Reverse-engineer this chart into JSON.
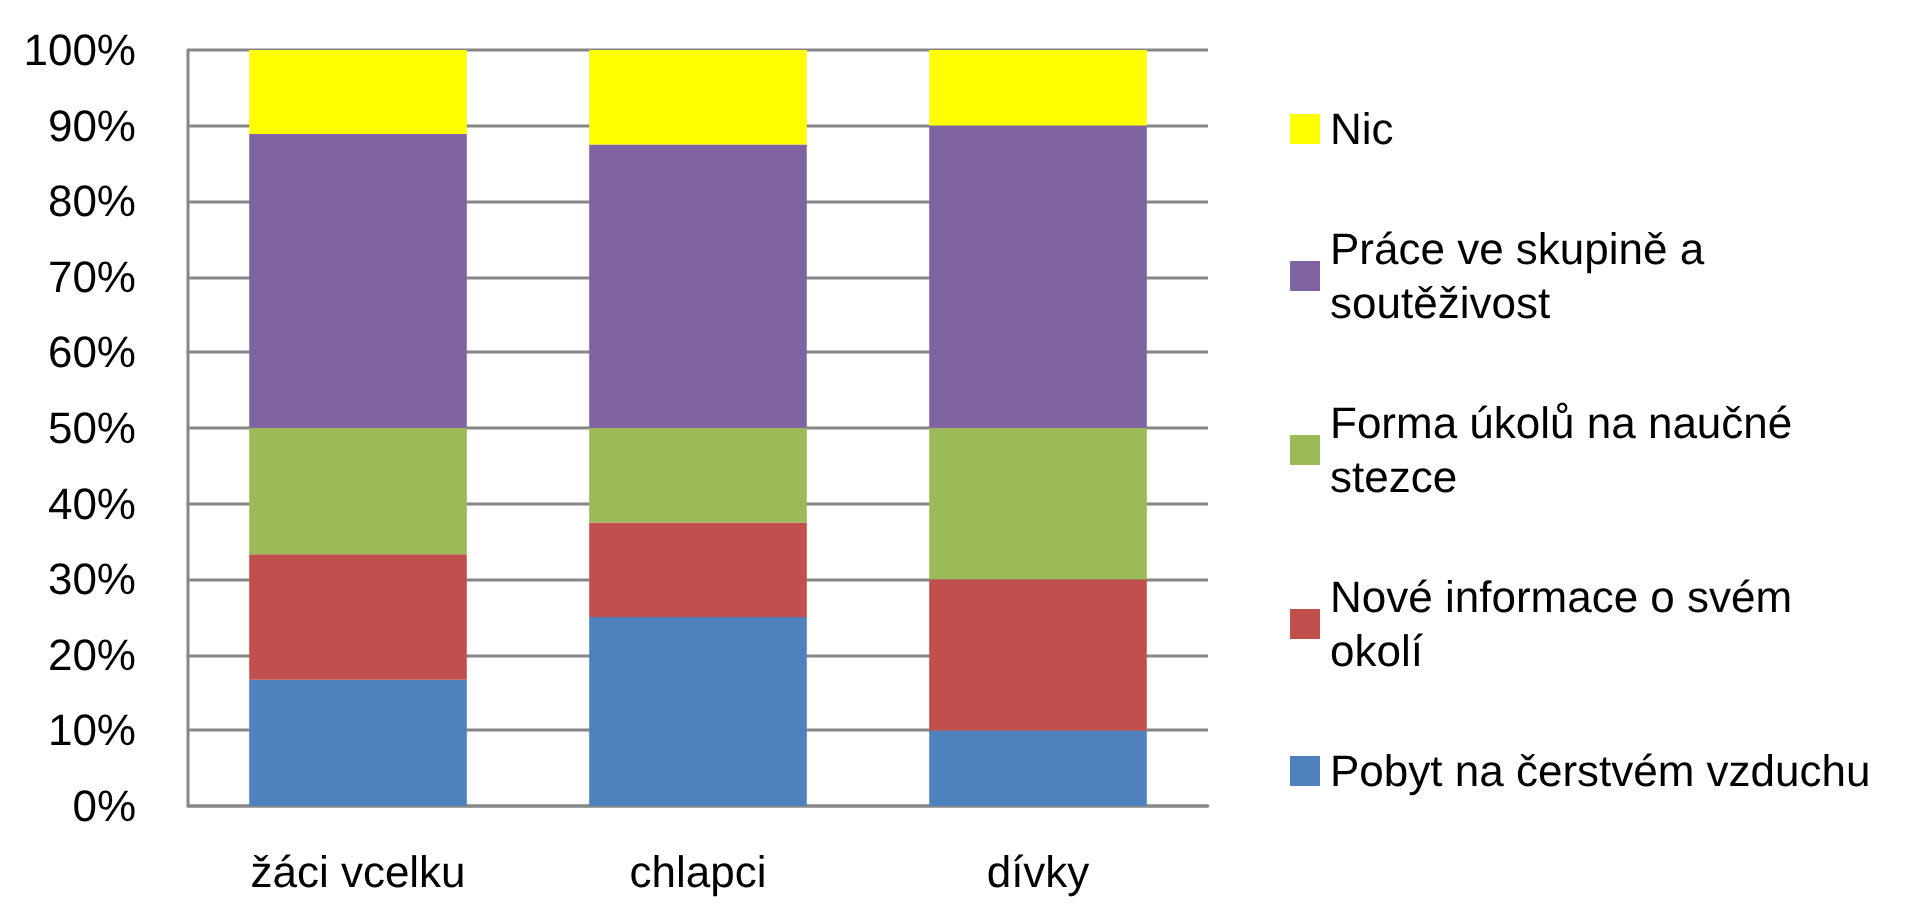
{
  "chart_data": {
    "type": "bar",
    "stacked": true,
    "categories": [
      "žáci vcelku",
      "chlapci",
      "dívky"
    ],
    "series": [
      {
        "name": "Pobyt na čerstvém vzduchu",
        "color": "#4f81bd",
        "values": [
          16.7,
          25,
          10
        ]
      },
      {
        "name": "Nové informace o svém okolí",
        "color": "#c0504d",
        "values": [
          16.6,
          12.5,
          20
        ]
      },
      {
        "name": "Forma úkolů na naučné stezce",
        "color": "#9bbb59",
        "values": [
          16.7,
          12.5,
          20
        ]
      },
      {
        "name": "Práce ve skupině a soutěživost",
        "color": "#8064a2",
        "values": [
          38.9,
          37.5,
          40
        ]
      },
      {
        "name": "Nic",
        "color": "#ffff00",
        "values": [
          11.1,
          12.5,
          10
        ]
      }
    ],
    "ylim": [
      0,
      100
    ],
    "yticks": [
      {
        "value": 0,
        "label": "0%"
      },
      {
        "value": 10,
        "label": "10%"
      },
      {
        "value": 20,
        "label": "20%"
      },
      {
        "value": 30,
        "label": "30%"
      },
      {
        "value": 40,
        "label": "40%"
      },
      {
        "value": 50,
        "label": "50%"
      },
      {
        "value": 60,
        "label": "60%"
      },
      {
        "value": 70,
        "label": "70%"
      },
      {
        "value": 80,
        "label": "80%"
      },
      {
        "value": 90,
        "label": "90%"
      },
      {
        "value": 100,
        "label": "100%"
      }
    ],
    "grid": "y",
    "legend": "right"
  }
}
